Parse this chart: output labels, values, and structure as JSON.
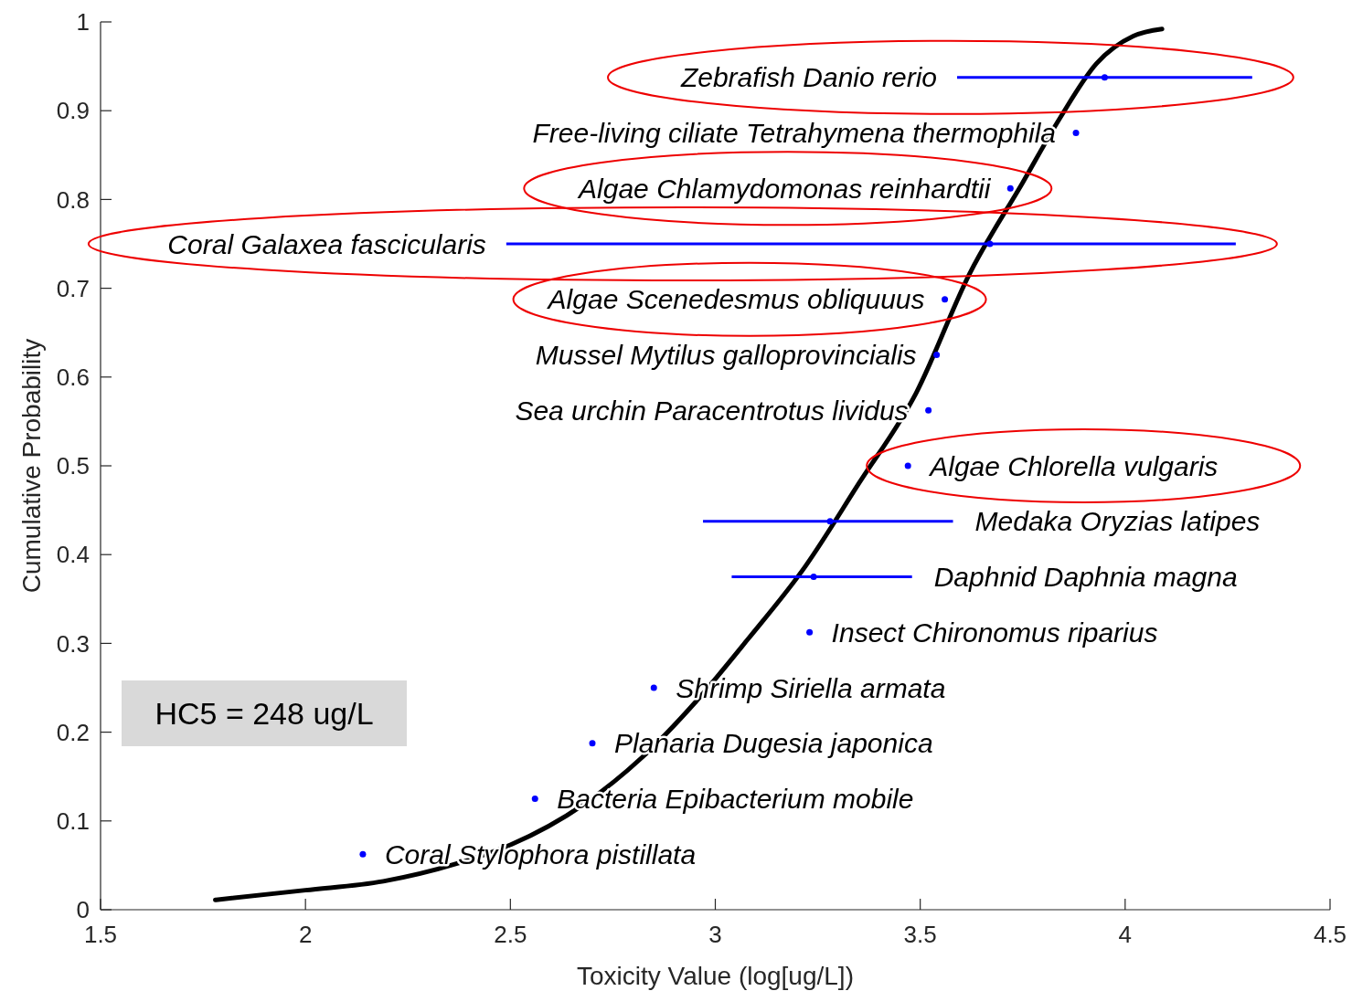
{
  "chart_data": {
    "type": "scatter",
    "xlabel": "Toxicity Value (log[ug/L])",
    "ylabel": "Cumulative Probability",
    "xlim": [
      1.5,
      4.5
    ],
    "ylim": [
      0,
      1
    ],
    "xticks": [
      1.5,
      2,
      2.5,
      3,
      3.5,
      4,
      4.5
    ],
    "yticks": [
      0,
      0.1,
      0.2,
      0.3,
      0.4,
      0.5,
      0.6,
      0.7,
      0.8,
      0.9,
      1
    ],
    "grid": false,
    "marker": "circle",
    "series": [
      {
        "type": "line",
        "color": "#000000",
        "marker": "none",
        "x": [
          1.78,
          2.0,
          2.19,
          2.37,
          2.5,
          2.68,
          2.82,
          2.95,
          3.08,
          3.22,
          3.35,
          3.49,
          3.62,
          3.75,
          3.84,
          3.93,
          4.02,
          4.09
        ],
        "values": [
          0.011,
          0.022,
          0.032,
          0.052,
          0.073,
          0.119,
          0.171,
          0.233,
          0.305,
          0.387,
          0.48,
          0.582,
          0.716,
          0.819,
          0.891,
          0.953,
          0.984,
          0.992
        ]
      },
      {
        "color": "#0000ff",
        "x": [
          3.95,
          3.88,
          3.72,
          3.67,
          3.56,
          3.54,
          3.52,
          3.47,
          3.28,
          3.24,
          3.23,
          2.85,
          2.7,
          2.56,
          2.14
        ],
        "values": [
          0.9375,
          0.875,
          0.8125,
          0.75,
          0.6875,
          0.625,
          0.5625,
          0.5,
          0.4375,
          0.375,
          0.3125,
          0.25,
          0.1875,
          0.125,
          0.0625
        ],
        "xerrors": [
          [
            3.59,
            4.31
          ],
          null,
          null,
          [
            2.49,
            4.27
          ],
          null,
          null,
          null,
          null,
          [
            2.97,
            3.58
          ],
          [
            3.04,
            3.48
          ],
          null,
          null,
          null,
          null,
          null
        ]
      }
    ],
    "annotations": [
      {
        "text": "Zebrafish Danio rerio",
        "x": 3.59,
        "y": 0.9375
      },
      {
        "text": "Free-living ciliate Tetrahymena thermophila",
        "x": 3.88,
        "y": 0.875
      },
      {
        "text": "Algae Chlamydomonas reinhardtii",
        "x": 3.72,
        "y": 0.8125
      },
      {
        "text": "Coral Galaxea fascicularis",
        "x": 2.49,
        "y": 0.75
      },
      {
        "text": "Algae Scenedesmus obliquuus",
        "x": 3.56,
        "y": 0.6875
      },
      {
        "text": "Mussel Mytilus galloprovincialis",
        "x": 3.54,
        "y": 0.625
      },
      {
        "text": "Sea urchin Paracentrotus lividus",
        "x": 3.52,
        "y": 0.5625
      },
      {
        "text": "Algae Chlorella vulgaris",
        "x": 3.47,
        "y": 0.5
      },
      {
        "text": "Medaka Oryzias latipes",
        "x": 3.58,
        "y": 0.4375
      },
      {
        "text": "Daphnid Daphnia magna",
        "x": 3.48,
        "y": 0.375
      },
      {
        "text": "Insect Chironomus riparius",
        "x": 3.23,
        "y": 0.3125
      },
      {
        "text": "Shrimp Siriella armata",
        "x": 2.85,
        "y": 0.25
      },
      {
        "text": "Planaria Dugesia japonica",
        "x": 2.7,
        "y": 0.1875
      },
      {
        "text": "Bacteria Epibacterium mobile",
        "x": 2.56,
        "y": 0.125
      },
      {
        "text": "Coral Stylophora pistillata",
        "x": 2.14,
        "y": 0.0625
      },
      "HC5 = 248 ug/L"
    ]
  }
}
